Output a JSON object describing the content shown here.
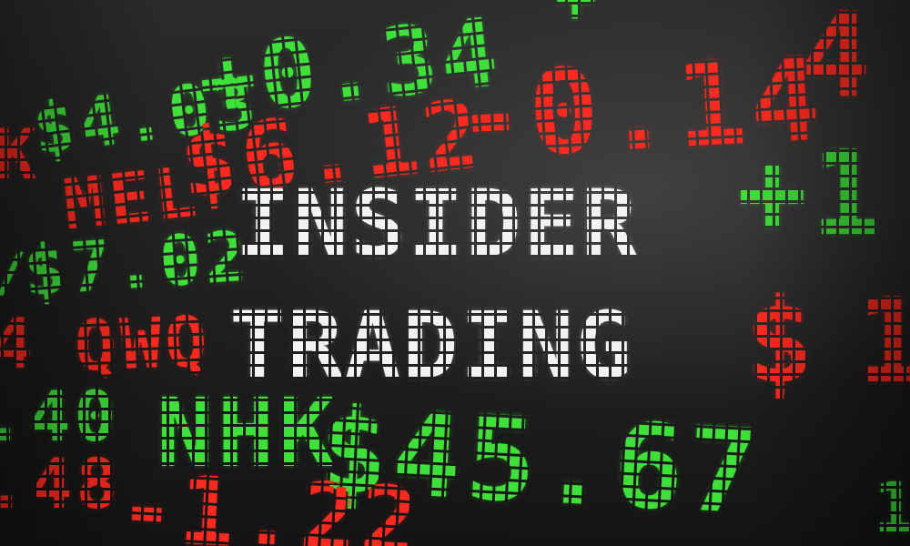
{
  "headline": {
    "line1": "INSIDER",
    "line2": "TRADING"
  },
  "tickers": {
    "mel": "MEL",
    "qwq": "QWQ",
    "nhk": "NHK",
    "k_partial": "K",
    "four_partial": "4",
    "slash_partial": "/"
  },
  "prices": {
    "p_4_03": "$4.03",
    "p_plus_0_34": "+0.34",
    "p_6_12": "$6.12",
    "p_minus_0_14": "-0.14",
    "p_7_02": "$7.02",
    "p_45_67": "$45.67",
    "p_minus_1_22": "-1.22",
    "p_40": ".40",
    "p_48": ".48",
    "p_plus_1": "+1",
    "p_dollar_right": "$",
    "p_top_partial": "+",
    "p_right_top": "4",
    "p_right_mid": "1",
    "p_right_bot": "1"
  },
  "colors": {
    "up": "#3fe03a",
    "down": "#ff2a1f",
    "headline": "#f2f2f2",
    "background": "#1f1f1f"
  }
}
